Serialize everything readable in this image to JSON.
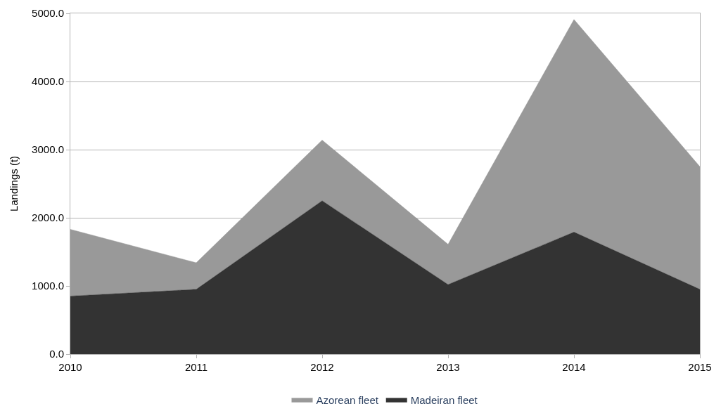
{
  "chart_data": {
    "type": "area",
    "stacked": true,
    "ylabel": "Landings (t)",
    "x": [
      2010,
      2011,
      2012,
      2013,
      2014,
      2015
    ],
    "xlim": [
      2010,
      2015
    ],
    "xticks": [
      2010,
      2011,
      2012,
      2013,
      2014,
      2015
    ],
    "ylim": [
      0,
      5000
    ],
    "yticks": [
      {
        "value": 0,
        "label": "0.0"
      },
      {
        "value": 1000,
        "label": "1000.0"
      },
      {
        "value": 2000,
        "label": "2000.0"
      },
      {
        "value": 3000,
        "label": "3000.0"
      },
      {
        "value": 4000,
        "label": "4000.0"
      },
      {
        "value": 5000,
        "label": "5000.0"
      }
    ],
    "grid": "y",
    "legend": "bottom",
    "series": [
      {
        "name": "Madeiran fleet",
        "color": "#333333",
        "values": [
          850,
          950,
          2250,
          1020,
          1790,
          950
        ]
      },
      {
        "name": "Azorean fleet",
        "color": "#999999",
        "values": [
          980,
          390,
          890,
          590,
          3120,
          1800
        ]
      }
    ]
  }
}
